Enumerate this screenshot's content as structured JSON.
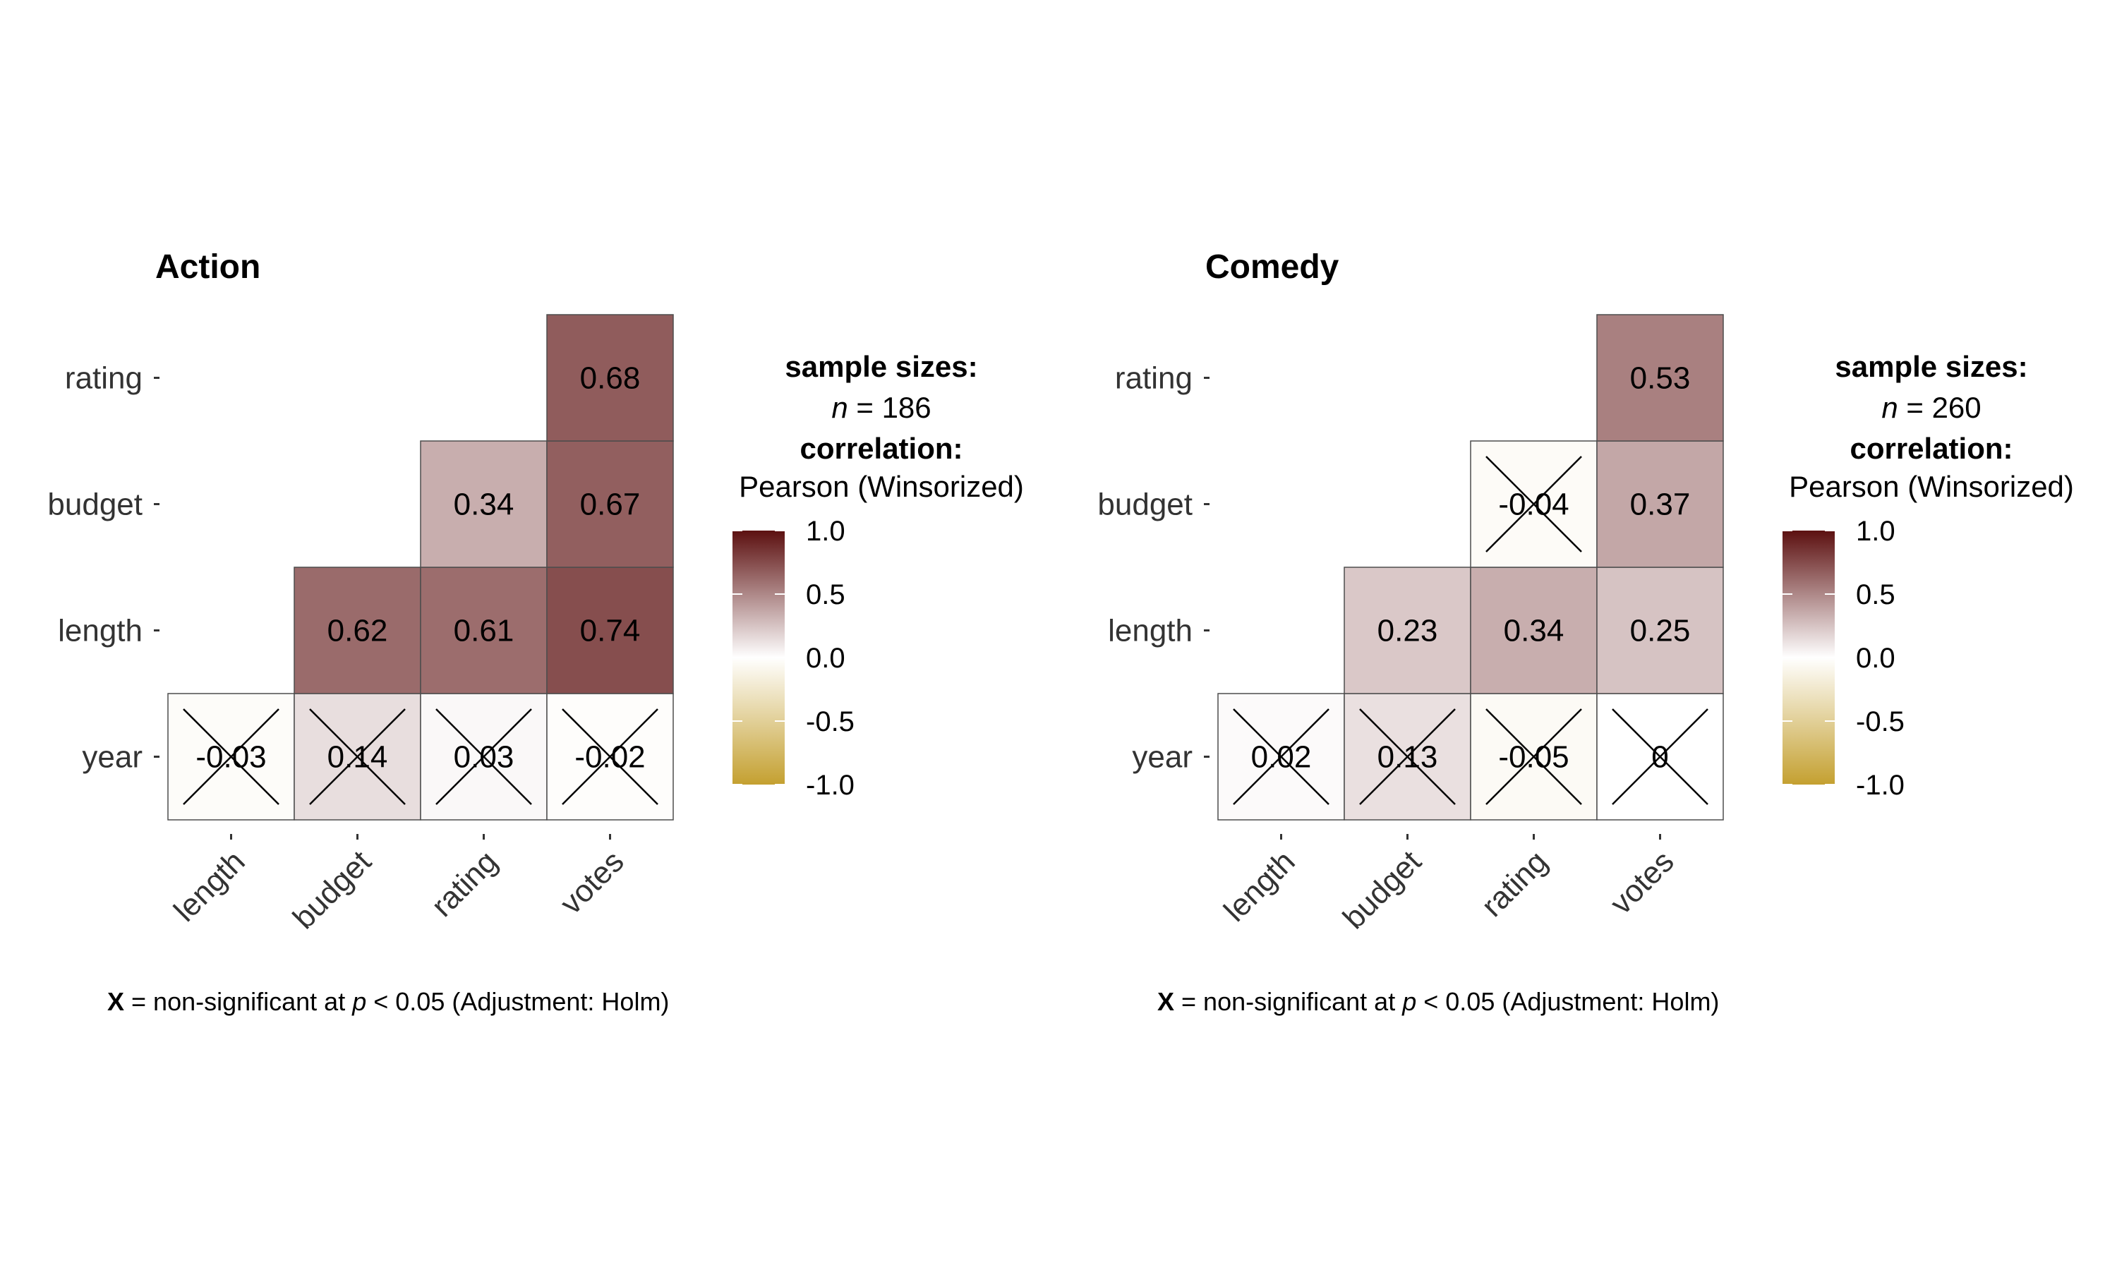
{
  "chart_data": [
    {
      "type": "heatmap",
      "title": "Action",
      "x_categories": [
        "length",
        "budget",
        "rating",
        "votes"
      ],
      "y_categories": [
        "year",
        "length",
        "budget",
        "rating"
      ],
      "cells": [
        {
          "x": "length",
          "y": "year",
          "value": -0.03,
          "label": "-0.03",
          "significant": false
        },
        {
          "x": "budget",
          "y": "year",
          "value": 0.14,
          "label": "0.14",
          "significant": false
        },
        {
          "x": "rating",
          "y": "year",
          "value": 0.03,
          "label": "0.03",
          "significant": false
        },
        {
          "x": "votes",
          "y": "year",
          "value": -0.02,
          "label": "-0.02",
          "significant": false
        },
        {
          "x": "budget",
          "y": "length",
          "value": 0.62,
          "label": "0.62",
          "significant": true
        },
        {
          "x": "rating",
          "y": "length",
          "value": 0.61,
          "label": "0.61",
          "significant": true
        },
        {
          "x": "votes",
          "y": "length",
          "value": 0.74,
          "label": "0.74",
          "significant": true
        },
        {
          "x": "rating",
          "y": "budget",
          "value": 0.34,
          "label": "0.34",
          "significant": true
        },
        {
          "x": "votes",
          "y": "budget",
          "value": 0.67,
          "label": "0.67",
          "significant": true
        },
        {
          "x": "votes",
          "y": "rating",
          "value": 0.68,
          "label": "0.68",
          "significant": true
        }
      ],
      "legend": {
        "sample_sizes_label": "sample sizes:",
        "n_symbol": "n",
        "n_text": " = 186",
        "correlation_label": "correlation:",
        "correlation_type": "Pearson (Winsorized)",
        "ticks": [
          "1.0",
          "0.5",
          "0.0",
          "-0.5",
          "-1.0"
        ],
        "colors": {
          "high": "#5C1010",
          "mid": "#FFFFFF",
          "low": "#C4A030"
        }
      },
      "caption": {
        "symbol": "X",
        "text_before_p": " = non-significant at ",
        "p_symbol": "p",
        "text_after_p": " < 0.05 (Adjustment: Holm)"
      }
    },
    {
      "type": "heatmap",
      "title": "Comedy",
      "x_categories": [
        "length",
        "budget",
        "rating",
        "votes"
      ],
      "y_categories": [
        "year",
        "length",
        "budget",
        "rating"
      ],
      "cells": [
        {
          "x": "length",
          "y": "year",
          "value": 0.02,
          "label": "0.02",
          "significant": false
        },
        {
          "x": "budget",
          "y": "year",
          "value": 0.13,
          "label": "0.13",
          "significant": false
        },
        {
          "x": "rating",
          "y": "year",
          "value": -0.05,
          "label": "-0.05",
          "significant": false
        },
        {
          "x": "votes",
          "y": "year",
          "value": 0,
          "label": "0",
          "significant": false
        },
        {
          "x": "budget",
          "y": "length",
          "value": 0.23,
          "label": "0.23",
          "significant": true
        },
        {
          "x": "rating",
          "y": "length",
          "value": 0.34,
          "label": "0.34",
          "significant": true
        },
        {
          "x": "votes",
          "y": "length",
          "value": 0.25,
          "label": "0.25",
          "significant": true
        },
        {
          "x": "rating",
          "y": "budget",
          "value": -0.04,
          "label": "-0.04",
          "significant": false
        },
        {
          "x": "votes",
          "y": "budget",
          "value": 0.37,
          "label": "0.37",
          "significant": true
        },
        {
          "x": "votes",
          "y": "rating",
          "value": 0.53,
          "label": "0.53",
          "significant": true
        }
      ],
      "legend": {
        "sample_sizes_label": "sample sizes:",
        "n_symbol": "n",
        "n_text": " = 260",
        "correlation_label": "correlation:",
        "correlation_type": "Pearson (Winsorized)",
        "ticks": [
          "1.0",
          "0.5",
          "0.0",
          "-0.5",
          "-1.0"
        ],
        "colors": {
          "high": "#5C1010",
          "mid": "#FFFFFF",
          "low": "#C4A030"
        }
      },
      "caption": {
        "symbol": "X",
        "text_before_p": " = non-significant at ",
        "p_symbol": "p",
        "text_after_p": " < 0.05 (Adjustment: Holm)"
      }
    }
  ]
}
